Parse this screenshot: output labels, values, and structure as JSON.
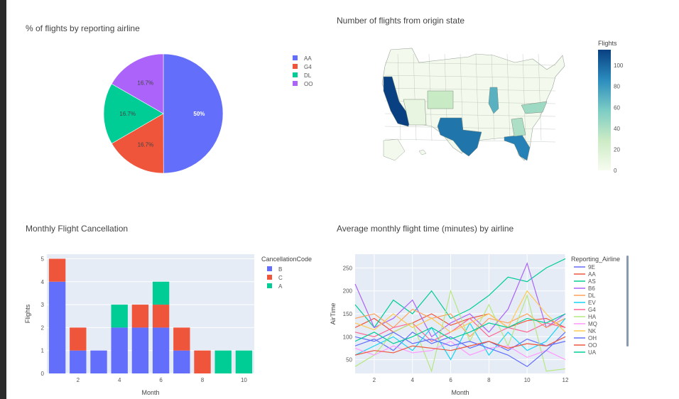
{
  "charts": {
    "pie": {
      "title": "% of flights by reporting airline",
      "chart_data": {
        "type": "pie",
        "slices": [
          {
            "label": "AA",
            "value": 50,
            "color": "#636efa",
            "text": "50%"
          },
          {
            "label": "G4",
            "value": 16.7,
            "color": "#ef553b",
            "text": "16.7%"
          },
          {
            "label": "DL",
            "value": 16.7,
            "color": "#00cc96",
            "text": "16.7%"
          },
          {
            "label": "OO",
            "value": 16.7,
            "color": "#ab63fa",
            "text": "16.7%"
          }
        ],
        "legend_position": "right"
      }
    },
    "map": {
      "title": "Number of flights from origin state",
      "chart_data": {
        "type": "choropleth",
        "colorbar_title": "Flights",
        "colorbar_ticks": [
          "100",
          "80",
          "60",
          "40",
          "20",
          "0"
        ],
        "range": [
          0,
          115
        ],
        "states": [
          {
            "name": "CA",
            "value": 115
          },
          {
            "name": "TX",
            "value": 95
          },
          {
            "name": "FL",
            "value": 90
          },
          {
            "name": "IL",
            "value": 70
          },
          {
            "name": "NC",
            "value": 45
          },
          {
            "name": "GA",
            "value": 40
          },
          {
            "name": "CO",
            "value": 30
          },
          {
            "name": "AZ",
            "value": 10
          }
        ],
        "colorscale": [
          "#f7fcf0",
          "#ccebc5",
          "#7bccc4",
          "#2b8cbe",
          "#084081"
        ]
      }
    },
    "bar": {
      "title": "Monthly Flight Cancellation",
      "chart_data": {
        "type": "bar",
        "barmode": "stack",
        "xlabel": "Month",
        "ylabel": "Flights",
        "xlim": [
          0.5,
          10.5
        ],
        "ylim": [
          0,
          5.2
        ],
        "x_ticks": [
          2,
          4,
          6,
          8,
          10
        ],
        "y_ticks": [
          0,
          1,
          2,
          3,
          4,
          5
        ],
        "legend_title": "CancellationCode",
        "series": [
          {
            "name": "B",
            "color": "#636efa",
            "values": [
              4,
              1,
              1,
              2,
              2,
              2,
              1,
              0,
              0,
              0
            ]
          },
          {
            "name": "C",
            "color": "#ef553b",
            "values": [
              1,
              1,
              0,
              0,
              1,
              1,
              1,
              1,
              0,
              0
            ]
          },
          {
            "name": "A",
            "color": "#00cc96",
            "values": [
              0,
              0,
              0,
              1,
              0,
              1,
              0,
              0,
              1,
              1
            ]
          }
        ],
        "months": [
          1,
          2,
          3,
          4,
          5,
          6,
          7,
          8,
          9,
          10
        ]
      }
    },
    "line": {
      "title": "Average monthly flight time (minutes) by airline",
      "chart_data": {
        "type": "line",
        "xlabel": "Month",
        "ylabel": "AirTime",
        "xlim": [
          1,
          12
        ],
        "ylim": [
          20,
          280
        ],
        "x_ticks": [
          2,
          4,
          6,
          8,
          10,
          12
        ],
        "y_ticks": [
          50,
          100,
          150,
          200,
          250
        ],
        "legend_title": "Reporting_Airline",
        "x": [
          1,
          2,
          3,
          4,
          5,
          6,
          7,
          8,
          9,
          10,
          11,
          12
        ],
        "series": [
          {
            "name": "9E",
            "color": "#636efa",
            "values": [
              80,
              95,
              70,
              110,
              85,
              100,
              75,
              90,
              70,
              95,
              80,
              90
            ]
          },
          {
            "name": "AA",
            "color": "#ef553b",
            "values": [
              120,
              140,
              110,
              130,
              150,
              125,
              140,
              150,
              120,
              135,
              140,
              120
            ]
          },
          {
            "name": "AS",
            "color": "#00cc96",
            "values": [
              170,
              120,
              180,
              150,
              200,
              140,
              160,
              190,
              230,
              220,
              250,
              270
            ]
          },
          {
            "name": "B6",
            "color": "#ab63fa",
            "values": [
              215,
              120,
              140,
              180,
              100,
              130,
              150,
              110,
              160,
              260,
              120,
              150
            ]
          },
          {
            "name": "DL",
            "color": "#ffa15a",
            "values": [
              140,
              150,
              120,
              160,
              140,
              150,
              100,
              140,
              130,
              150,
              120,
              140
            ]
          },
          {
            "name": "EV",
            "color": "#19d3f3",
            "values": [
              60,
              80,
              100,
              70,
              120,
              50,
              130,
              60,
              110,
              70,
              90,
              140
            ]
          },
          {
            "name": "G4",
            "color": "#ff6692",
            "values": [
              110,
              100,
              120,
              130,
              90,
              110,
              140,
              100,
              120,
              110,
              130,
              120
            ]
          },
          {
            "name": "HA",
            "color": "#b6e880",
            "values": [
              35,
              60,
              110,
              130,
              25,
              200,
              90,
              170,
              80,
              190,
              25,
              30
            ]
          },
          {
            "name": "MQ",
            "color": "#ff97ff",
            "values": [
              75,
              60,
              80,
              65,
              70,
              90,
              60,
              75,
              80,
              55,
              70,
              50
            ]
          },
          {
            "name": "NK",
            "color": "#fecb52",
            "values": [
              130,
              115,
              150,
              120,
              140,
              110,
              130,
              150,
              120,
              200,
              150,
              110
            ]
          },
          {
            "name": "OH",
            "color": "#636efa",
            "values": [
              100,
              90,
              110,
              85,
              95,
              80,
              90,
              75,
              60,
              35,
              70,
              110
            ]
          },
          {
            "name": "OO",
            "color": "#ef553b",
            "values": [
              60,
              70,
              65,
              80,
              75,
              70,
              80,
              90,
              75,
              85,
              80,
              100
            ]
          },
          {
            "name": "UA",
            "color": "#00cc96",
            "values": [
              90,
              110,
              85,
              100,
              120,
              95,
              110,
              130,
              120,
              140,
              130,
              150
            ]
          }
        ]
      }
    }
  }
}
